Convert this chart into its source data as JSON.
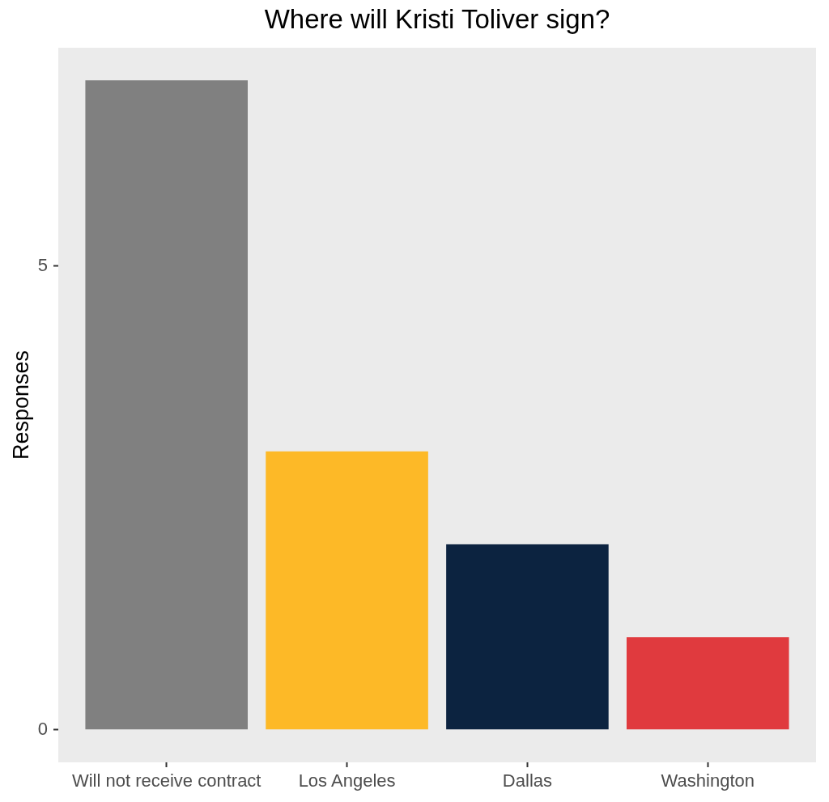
{
  "chart_data": {
    "type": "bar",
    "title": "Where will Kristi Toliver sign?",
    "ylabel": "Responses",
    "categories": [
      "Will not receive contract",
      "Los Angeles",
      "Dallas",
      "Washington"
    ],
    "values": [
      7,
      3,
      2,
      1
    ],
    "colors": [
      "#808080",
      "#fdb927",
      "#0c2340",
      "#e03a3e"
    ],
    "ylim": [
      -0.35,
      7.35
    ],
    "yticks": [
      0,
      5
    ],
    "grid": false,
    "legend": false
  }
}
